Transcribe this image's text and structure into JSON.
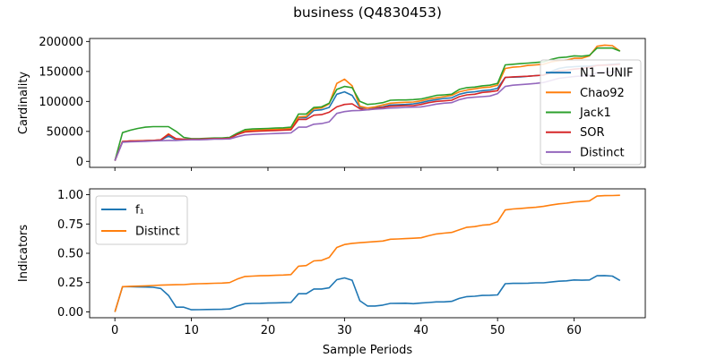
{
  "chart_data": {
    "title": "business (Q4830453)",
    "xlabel": "Sample Periods",
    "xlim": [
      -3.3,
      69.3
    ],
    "xticks": [
      0,
      10,
      20,
      30,
      40,
      50,
      60
    ],
    "panels": [
      {
        "type": "line",
        "ylabel": "Cardinality",
        "ylim": [
          -10000,
          205000
        ],
        "yticks": [
          0,
          50000,
          100000,
          150000,
          200000
        ],
        "ytick_labels": [
          "0",
          "50000",
          "100000",
          "150000",
          "200000"
        ],
        "legend_position": "right",
        "x": [
          0,
          1,
          2,
          3,
          4,
          5,
          6,
          7,
          8,
          9,
          10,
          11,
          12,
          13,
          14,
          15,
          16,
          17,
          18,
          19,
          20,
          21,
          22,
          23,
          24,
          25,
          26,
          27,
          28,
          29,
          30,
          31,
          32,
          33,
          34,
          35,
          36,
          37,
          38,
          39,
          40,
          41,
          42,
          43,
          44,
          45,
          46,
          47,
          48,
          49,
          50,
          51,
          52,
          53,
          54,
          55,
          56,
          57,
          58,
          59,
          60,
          61,
          62,
          63,
          64,
          65,
          66
        ],
        "series": [
          {
            "name": "N1−UNIF",
            "color": "#1f77b4",
            "values": [
              1000,
              33000,
              34000,
              34000,
              34500,
              35000,
              35500,
              42000,
              36000,
              36000,
              36000,
              37000,
              37500,
              38000,
              38000,
              38500,
              45000,
              50000,
              51000,
              51500,
              52000,
              52500,
              53000,
              53500,
              73000,
              73000,
              85000,
              86000,
              90000,
              112000,
              116000,
              110000,
              90000,
              89000,
              89500,
              91000,
              94000,
              94500,
              95000,
              96000,
              98000,
              101000,
              103000,
              105000,
              106000,
              112000,
              115000,
              116000,
              118000,
              119000,
              122000,
              140000,
              140500,
              141000,
              142000,
              143000,
              144000,
              150000,
              155000,
              157000,
              158000,
              158500,
              159000,
              160000,
              161000,
              162000,
              163000
            ]
          },
          {
            "name": "Chao92",
            "color": "#ff7f0e",
            "values": [
              1000,
              33000,
              34000,
              34500,
              34500,
              35000,
              36000,
              46000,
              37000,
              36000,
              36500,
              37000,
              37500,
              38000,
              38000,
              39000,
              46000,
              51000,
              52000,
              52500,
              53000,
              53500,
              54000,
              55000,
              74000,
              75000,
              88000,
              89000,
              96000,
              130000,
              137000,
              126000,
              92000,
              89000,
              91000,
              94000,
              97000,
              98000,
              98500,
              99000,
              101000,
              104000,
              106000,
              108000,
              110000,
              116000,
              119000,
              121000,
              123000,
              124000,
              127000,
              155000,
              157000,
              158000,
              160000,
              161000,
              162000,
              166000,
              168000,
              169000,
              172000,
              172000,
              176000,
              192000,
              194000,
              193000,
              184000
            ]
          },
          {
            "name": "Jack1",
            "color": "#2ca02c",
            "values": [
              1000,
              48000,
              52000,
              55000,
              57000,
              58000,
              58000,
              58000,
              50000,
              40000,
              38000,
              38000,
              38500,
              39000,
              39000,
              40000,
              47000,
              53000,
              54000,
              54500,
              55000,
              55500,
              56000,
              57000,
              79000,
              79000,
              90000,
              91000,
              97000,
              120000,
              125000,
              123000,
              100000,
              95000,
              96000,
              98000,
              102000,
              102500,
              102500,
              103000,
              104000,
              107000,
              110000,
              111000,
              112000,
              120000,
              123000,
              124000,
              126000,
              127000,
              130000,
              161000,
              162000,
              163000,
              164000,
              165000,
              166000,
              170000,
              173000,
              174000,
              176000,
              175500,
              177000,
              189000,
              189000,
              189000,
              184000
            ]
          },
          {
            "name": "SOR",
            "color": "#d62728",
            "values": [
              1000,
              33000,
              34000,
              34000,
              34500,
              35000,
              36000,
              45000,
              38000,
              37000,
              37000,
              37000,
              37500,
              38000,
              38000,
              38500,
              45000,
              49000,
              50000,
              50500,
              51000,
              51500,
              52000,
              52500,
              70000,
              70000,
              77000,
              78000,
              82000,
              91000,
              95000,
              96000,
              88000,
              86000,
              88000,
              90000,
              92000,
              92500,
              93000,
              93000,
              95000,
              98000,
              100000,
              101000,
              102000,
              108000,
              111000,
              112000,
              115000,
              116000,
              118000,
              140000,
              141000,
              141500,
              142000,
              143000,
              144000,
              148000,
              151000,
              152000,
              154000,
              155000,
              157000,
              160000,
              160500,
              161000,
              162000
            ]
          },
          {
            "name": "Distinct",
            "color": "#9467bd",
            "values": [
              1000,
              32000,
              32500,
              33000,
              33500,
              34000,
              34500,
              35000,
              35000,
              35500,
              36000,
              36000,
              36500,
              37000,
              37000,
              37500,
              41000,
              44000,
              45000,
              45500,
              46000,
              46500,
              47000,
              47500,
              57000,
              57000,
              62000,
              63000,
              66000,
              80000,
              83000,
              84500,
              85000,
              86000,
              87000,
              88000,
              89000,
              89500,
              90000,
              90500,
              91000,
              93000,
              95500,
              97000,
              98000,
              103000,
              106000,
              107000,
              108000,
              109000,
              113000,
              125000,
              127000,
              128000,
              129000,
              130000,
              131500,
              135000,
              138500,
              140000,
              141500,
              142500,
              143500,
              148000,
              149000,
              149000,
              150000
            ]
          }
        ]
      },
      {
        "type": "line",
        "ylabel": "Indicators",
        "ylim": [
          -0.05,
          1.05
        ],
        "yticks": [
          0,
          0.25,
          0.5,
          0.75,
          1
        ],
        "ytick_labels": [
          "0.00",
          "0.25",
          "0.50",
          "0.75",
          "1.00"
        ],
        "legend_position": "upper-left",
        "x": [
          0,
          1,
          2,
          3,
          4,
          5,
          6,
          7,
          8,
          9,
          10,
          11,
          12,
          13,
          14,
          15,
          16,
          17,
          18,
          19,
          20,
          21,
          22,
          23,
          24,
          25,
          26,
          27,
          28,
          29,
          30,
          31,
          32,
          33,
          34,
          35,
          36,
          37,
          38,
          39,
          40,
          41,
          42,
          43,
          44,
          45,
          46,
          47,
          48,
          49,
          50,
          51,
          52,
          53,
          54,
          55,
          56,
          57,
          58,
          59,
          60,
          61,
          62,
          63,
          64,
          65,
          66
        ],
        "series": [
          {
            "name": "f₁",
            "color": "#1f77b4",
            "values": [
              0.0,
              0.215,
              0.215,
              0.213,
              0.212,
              0.21,
              0.2,
              0.14,
              0.04,
              0.04,
              0.018,
              0.019,
              0.02,
              0.021,
              0.022,
              0.025,
              0.05,
              0.07,
              0.072,
              0.073,
              0.075,
              0.077,
              0.078,
              0.08,
              0.155,
              0.155,
              0.195,
              0.195,
              0.205,
              0.275,
              0.29,
              0.27,
              0.095,
              0.05,
              0.05,
              0.058,
              0.072,
              0.073,
              0.074,
              0.07,
              0.075,
              0.08,
              0.085,
              0.085,
              0.09,
              0.115,
              0.13,
              0.133,
              0.14,
              0.142,
              0.145,
              0.24,
              0.243,
              0.243,
              0.245,
              0.248,
              0.248,
              0.255,
              0.262,
              0.265,
              0.272,
              0.27,
              0.272,
              0.308,
              0.31,
              0.305,
              0.268
            ]
          },
          {
            "name": "Distinct",
            "color": "#ff7f0e",
            "values": [
              0.0,
              0.215,
              0.218,
              0.22,
              0.222,
              0.225,
              0.228,
              0.23,
              0.232,
              0.233,
              0.238,
              0.24,
              0.242,
              0.244,
              0.246,
              0.25,
              0.28,
              0.302,
              0.305,
              0.308,
              0.31,
              0.312,
              0.314,
              0.318,
              0.39,
              0.395,
              0.435,
              0.44,
              0.465,
              0.55,
              0.575,
              0.585,
              0.59,
              0.595,
              0.6,
              0.605,
              0.62,
              0.622,
              0.625,
              0.628,
              0.632,
              0.65,
              0.665,
              0.672,
              0.678,
              0.7,
              0.722,
              0.728,
              0.74,
              0.745,
              0.77,
              0.87,
              0.878,
              0.883,
              0.888,
              0.893,
              0.9,
              0.912,
              0.922,
              0.928,
              0.938,
              0.942,
              0.948,
              0.988,
              0.992,
              0.993,
              0.995
            ]
          }
        ]
      }
    ]
  }
}
